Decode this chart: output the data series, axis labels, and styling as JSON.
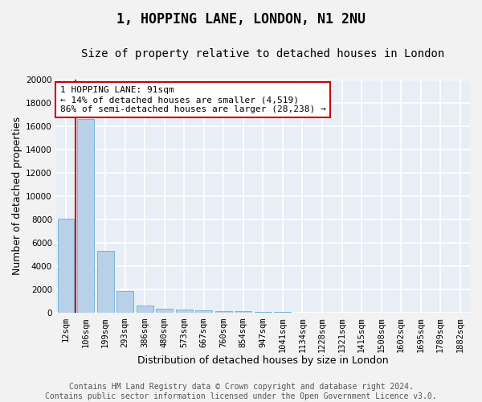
{
  "title": "1, HOPPING LANE, LONDON, N1 2NU",
  "subtitle": "Size of property relative to detached houses in London",
  "xlabel": "Distribution of detached houses by size in London",
  "ylabel": "Number of detached properties",
  "categories": [
    "12sqm",
    "106sqm",
    "199sqm",
    "293sqm",
    "386sqm",
    "480sqm",
    "573sqm",
    "667sqm",
    "760sqm",
    "854sqm",
    "947sqm",
    "1041sqm",
    "1134sqm",
    "1228sqm",
    "1321sqm",
    "1415sqm",
    "1508sqm",
    "1602sqm",
    "1695sqm",
    "1789sqm",
    "1882sqm"
  ],
  "values": [
    8100,
    16600,
    5300,
    1850,
    650,
    380,
    290,
    230,
    170,
    130,
    80,
    60,
    45,
    35,
    28,
    22,
    18,
    14,
    11,
    9,
    7
  ],
  "bar_color": "#b8d0e8",
  "bar_edge_color": "#6baed6",
  "vline_color": "#cc0000",
  "annotation_text": "1 HOPPING LANE: 91sqm\n← 14% of detached houses are smaller (4,519)\n86% of semi-detached houses are larger (28,238) →",
  "annotation_box_facecolor": "#ffffff",
  "annotation_box_edgecolor": "#cc0000",
  "ylim": [
    0,
    20000
  ],
  "yticks": [
    0,
    2000,
    4000,
    6000,
    8000,
    10000,
    12000,
    14000,
    16000,
    18000,
    20000
  ],
  "background_color": "#e8eef6",
  "grid_color": "#ffffff",
  "fig_facecolor": "#f2f2f2",
  "footer_text": "Contains HM Land Registry data © Crown copyright and database right 2024.\nContains public sector information licensed under the Open Government Licence v3.0.",
  "title_fontsize": 12,
  "subtitle_fontsize": 10,
  "xlabel_fontsize": 9,
  "ylabel_fontsize": 9,
  "tick_fontsize": 7.5,
  "annotation_fontsize": 8,
  "footer_fontsize": 7
}
